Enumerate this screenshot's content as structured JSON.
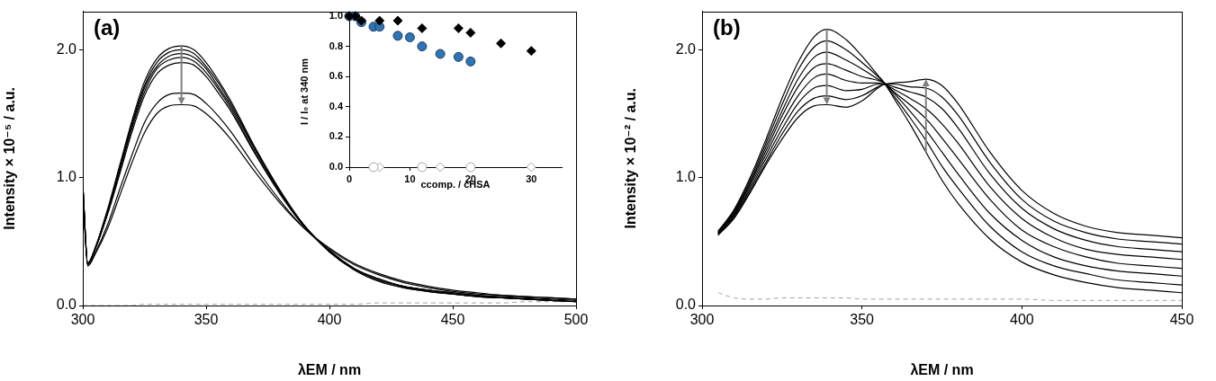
{
  "chart_data": [
    {
      "type": "line",
      "title": "(a)",
      "x_label": "λEM / nm",
      "y_label": "Intensity × 10⁻⁵ / a.u.",
      "xlim": [
        300,
        500
      ],
      "xticks": [
        300,
        350,
        400,
        450,
        500
      ],
      "ylim": [
        0,
        2.3
      ],
      "yticks": [
        {
          "value": 0,
          "label": "0.0"
        },
        {
          "value": 1,
          "label": "1.0"
        },
        {
          "value": 2,
          "label": "2.0"
        }
      ],
      "grid": false,
      "x": [
        300,
        302,
        305,
        310,
        315,
        320,
        325,
        330,
        335,
        340,
        345,
        350,
        355,
        360,
        370,
        380,
        390,
        400,
        410,
        420,
        430,
        440,
        450,
        460,
        470,
        480,
        490,
        500
      ],
      "series": [
        {
          "color": "#000000",
          "line_style": "solid",
          "values": [
            0.95,
            0.33,
            0.45,
            0.75,
            1.1,
            1.45,
            1.75,
            1.93,
            2.01,
            2.03,
            2.0,
            1.9,
            1.76,
            1.6,
            1.23,
            0.9,
            0.62,
            0.42,
            0.28,
            0.19,
            0.14,
            0.11,
            0.09,
            0.07,
            0.06,
            0.05,
            0.04,
            0.03
          ]
        },
        {
          "color": "#000000",
          "line_style": "solid",
          "values": [
            0.95,
            0.33,
            0.45,
            0.74,
            1.08,
            1.43,
            1.72,
            1.9,
            1.98,
            2.0,
            1.97,
            1.87,
            1.74,
            1.58,
            1.22,
            0.89,
            0.62,
            0.42,
            0.28,
            0.19,
            0.14,
            0.11,
            0.09,
            0.07,
            0.06,
            0.05,
            0.04,
            0.03
          ]
        },
        {
          "color": "#000000",
          "line_style": "solid",
          "values": [
            0.94,
            0.33,
            0.44,
            0.73,
            1.07,
            1.41,
            1.7,
            1.87,
            1.95,
            1.97,
            1.94,
            1.85,
            1.71,
            1.56,
            1.21,
            0.89,
            0.62,
            0.42,
            0.29,
            0.2,
            0.15,
            0.12,
            0.09,
            0.07,
            0.06,
            0.05,
            0.04,
            0.03
          ]
        },
        {
          "color": "#000000",
          "line_style": "solid",
          "values": [
            0.94,
            0.33,
            0.44,
            0.72,
            1.05,
            1.39,
            1.67,
            1.85,
            1.92,
            1.94,
            1.91,
            1.82,
            1.69,
            1.54,
            1.19,
            0.88,
            0.62,
            0.43,
            0.29,
            0.2,
            0.15,
            0.12,
            0.1,
            0.08,
            0.06,
            0.05,
            0.04,
            0.03
          ]
        },
        {
          "color": "#000000",
          "line_style": "solid",
          "values": [
            0.94,
            0.32,
            0.44,
            0.71,
            1.03,
            1.36,
            1.64,
            1.81,
            1.88,
            1.9,
            1.88,
            1.79,
            1.66,
            1.52,
            1.18,
            0.87,
            0.61,
            0.43,
            0.29,
            0.21,
            0.15,
            0.12,
            0.1,
            0.08,
            0.07,
            0.06,
            0.05,
            0.04
          ]
        },
        {
          "color": "#000000",
          "line_style": "solid",
          "values": [
            0.91,
            0.31,
            0.41,
            0.63,
            0.91,
            1.18,
            1.43,
            1.58,
            1.65,
            1.66,
            1.65,
            1.58,
            1.48,
            1.36,
            1.08,
            0.82,
            0.6,
            0.44,
            0.32,
            0.24,
            0.18,
            0.14,
            0.11,
            0.09,
            0.08,
            0.07,
            0.06,
            0.05
          ]
        },
        {
          "color": "#000000",
          "line_style": "solid",
          "values": [
            0.9,
            0.31,
            0.4,
            0.6,
            0.86,
            1.12,
            1.35,
            1.5,
            1.56,
            1.57,
            1.56,
            1.5,
            1.41,
            1.3,
            1.04,
            0.8,
            0.6,
            0.45,
            0.33,
            0.25,
            0.19,
            0.15,
            0.12,
            0.1,
            0.08,
            0.07,
            0.06,
            0.05
          ]
        },
        {
          "color": "#a6a6a6",
          "line_style": "dashed",
          "values": [
            0.0,
            0.0,
            0.0,
            0.0,
            0.0,
            0.0,
            0.01,
            0.01,
            0.01,
            0.01,
            0.01,
            0.01,
            0.01,
            0.01,
            0.01,
            0.01,
            0.01,
            0.01,
            0.01,
            0.02,
            0.02,
            0.02,
            0.02,
            0.02,
            0.02,
            0.03,
            0.03,
            0.03
          ]
        }
      ]
    },
    {
      "type": "scatter",
      "x_label": "ccomp. / cHSA",
      "y_label": "I / I₀ at 340 nm",
      "xlim": [
        0,
        35
      ],
      "xticks": [
        0,
        10,
        20,
        30
      ],
      "ylim": [
        0,
        1
      ],
      "yticks": [
        {
          "value": 0,
          "label": "0.0"
        },
        {
          "value": 0.2,
          "label": "0.2"
        },
        {
          "value": 0.4,
          "label": "0.4"
        },
        {
          "value": 0.6,
          "label": "0.6"
        },
        {
          "value": 0.8,
          "label": "0.8"
        },
        {
          "value": 1,
          "label": "1.0"
        }
      ],
      "grid": false,
      "series": [
        {
          "color": "#000000",
          "marker": "diamond",
          "x": [
            0,
            1,
            2,
            5,
            8,
            12,
            18,
            20,
            25,
            30
          ],
          "values": [
            1.0,
            1.0,
            0.97,
            0.97,
            0.97,
            0.92,
            0.92,
            0.89,
            0.82,
            0.77
          ]
        },
        {
          "color": "#2e75b6",
          "marker": "circle",
          "x": [
            0,
            1,
            2,
            4,
            5,
            8,
            10,
            12,
            15,
            18,
            20
          ],
          "values": [
            1.0,
            1.0,
            0.96,
            0.93,
            0.93,
            0.87,
            0.86,
            0.8,
            0.75,
            0.73,
            0.7
          ]
        },
        {
          "color": "#a6a6a6",
          "marker": "open_circle",
          "x": [
            4,
            12,
            20
          ],
          "values": [
            0,
            0,
            0
          ]
        },
        {
          "color": "#a6a6a6",
          "marker": "open_diamond",
          "x": [
            5,
            15,
            30
          ],
          "values": [
            0,
            0,
            0
          ]
        }
      ]
    },
    {
      "type": "line",
      "title": "(b)",
      "x_label": "λEM / nm",
      "y_label": "Intensity × 10⁻² / a.u.",
      "xlim": [
        300,
        450
      ],
      "xticks": [
        300,
        350,
        400,
        450
      ],
      "ylim": [
        0,
        2.3
      ],
      "yticks": [
        {
          "value": 0,
          "label": "0.0"
        },
        {
          "value": 1,
          "label": "1.0"
        },
        {
          "value": 2,
          "label": "2.0"
        }
      ],
      "grid": false,
      "x": [
        305,
        310,
        315,
        320,
        325,
        330,
        335,
        339,
        345,
        350,
        355,
        357,
        360,
        365,
        370,
        375,
        380,
        390,
        400,
        410,
        420,
        430,
        440,
        450
      ],
      "series": [
        {
          "color": "#000000",
          "line_style": "solid",
          "values": [
            0.58,
            0.75,
            1.0,
            1.3,
            1.62,
            1.9,
            2.1,
            2.16,
            2.08,
            1.95,
            1.8,
            1.74,
            1.62,
            1.42,
            1.2,
            0.98,
            0.8,
            0.52,
            0.34,
            0.24,
            0.18,
            0.14,
            0.12,
            0.1
          ]
        },
        {
          "color": "#000000",
          "line_style": "solid",
          "values": [
            0.58,
            0.74,
            0.98,
            1.27,
            1.57,
            1.84,
            2.02,
            2.07,
            2.0,
            1.9,
            1.79,
            1.74,
            1.64,
            1.47,
            1.29,
            1.09,
            0.92,
            0.62,
            0.42,
            0.31,
            0.25,
            0.2,
            0.18,
            0.16
          ]
        },
        {
          "color": "#000000",
          "line_style": "solid",
          "values": [
            0.57,
            0.73,
            0.96,
            1.24,
            1.52,
            1.77,
            1.94,
            1.98,
            1.92,
            1.85,
            1.77,
            1.74,
            1.66,
            1.52,
            1.37,
            1.2,
            1.03,
            0.72,
            0.51,
            0.38,
            0.31,
            0.27,
            0.25,
            0.23
          ]
        },
        {
          "color": "#000000",
          "line_style": "solid",
          "values": [
            0.57,
            0.72,
            0.95,
            1.21,
            1.48,
            1.71,
            1.86,
            1.89,
            1.84,
            1.79,
            1.76,
            1.74,
            1.67,
            1.57,
            1.46,
            1.31,
            1.15,
            0.83,
            0.59,
            0.46,
            0.38,
            0.33,
            0.31,
            0.29
          ]
        },
        {
          "color": "#000000",
          "line_style": "solid",
          "values": [
            0.56,
            0.71,
            0.93,
            1.18,
            1.43,
            1.64,
            1.78,
            1.81,
            1.76,
            1.74,
            1.74,
            1.73,
            1.69,
            1.62,
            1.54,
            1.42,
            1.27,
            0.93,
            0.68,
            0.53,
            0.44,
            0.4,
            0.38,
            0.36
          ]
        },
        {
          "color": "#000000",
          "line_style": "solid",
          "values": [
            0.56,
            0.7,
            0.91,
            1.15,
            1.38,
            1.58,
            1.7,
            1.72,
            1.68,
            1.69,
            1.73,
            1.73,
            1.71,
            1.67,
            1.63,
            1.54,
            1.39,
            1.03,
            0.76,
            0.6,
            0.51,
            0.46,
            0.44,
            0.42
          ]
        },
        {
          "color": "#000000",
          "line_style": "solid",
          "values": [
            0.55,
            0.69,
            0.89,
            1.12,
            1.34,
            1.52,
            1.62,
            1.64,
            1.61,
            1.64,
            1.71,
            1.73,
            1.73,
            1.71,
            1.7,
            1.63,
            1.49,
            1.12,
            0.83,
            0.66,
            0.57,
            0.52,
            0.5,
            0.48
          ]
        },
        {
          "color": "#000000",
          "line_style": "solid",
          "values": [
            0.55,
            0.68,
            0.88,
            1.1,
            1.3,
            1.47,
            1.56,
            1.57,
            1.55,
            1.6,
            1.7,
            1.73,
            1.74,
            1.75,
            1.77,
            1.72,
            1.58,
            1.2,
            0.9,
            0.72,
            0.62,
            0.57,
            0.55,
            0.53
          ]
        },
        {
          "color": "#a6a6a6",
          "line_style": "dashed",
          "values": [
            0.1,
            0.06,
            0.05,
            0.05,
            0.06,
            0.06,
            0.06,
            0.06,
            0.06,
            0.05,
            0.05,
            0.05,
            0.05,
            0.05,
            0.05,
            0.05,
            0.05,
            0.05,
            0.05,
            0.04,
            0.04,
            0.04,
            0.04,
            0.04
          ]
        }
      ]
    }
  ]
}
